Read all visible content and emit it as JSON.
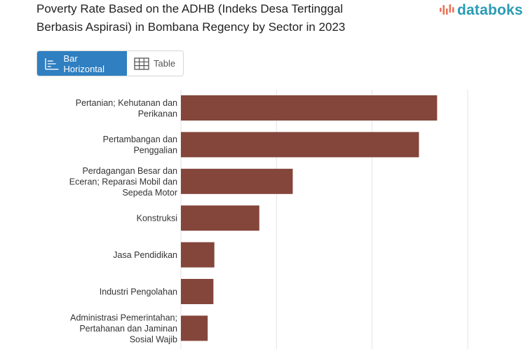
{
  "header": {
    "title_line1": "Poverty Rate Based on the ADHB (Indeks Desa Tertinggal",
    "title_line2": "Berbasis Aspirasi) in Bombana Regency by Sector in 2023",
    "logo_text": "databoks"
  },
  "tabs": [
    {
      "label": "Bar Horizontal",
      "active": true
    },
    {
      "label": "Table",
      "active": false
    }
  ],
  "colors": {
    "bar": "#84453b",
    "accent": "#2f7fc1",
    "logo": "#2a9bb4",
    "grid": "#e3e3e3"
  },
  "chart_data": {
    "type": "bar",
    "orientation": "horizontal",
    "categories": [
      [
        "Pertanian; Kehutanan dan",
        "Perikanan"
      ],
      [
        "Pertambangan dan",
        "Penggalian"
      ],
      [
        "Perdagangan Besar dan",
        "Eceran; Reparasi Mobil dan",
        "Sepeda Motor"
      ],
      [
        "Konstruksi"
      ],
      [
        "Jasa Pendidikan"
      ],
      [
        "Industri Pengolahan"
      ],
      [
        "Administrasi Pemerintahan;",
        "Pertahanan dan Jaminan",
        "Sosial Wajib"
      ]
    ],
    "values": [
      26.8,
      24.9,
      11.7,
      8.2,
      3.5,
      3.4,
      2.8
    ],
    "xlim": [
      0,
      30
    ],
    "grid": true
  }
}
